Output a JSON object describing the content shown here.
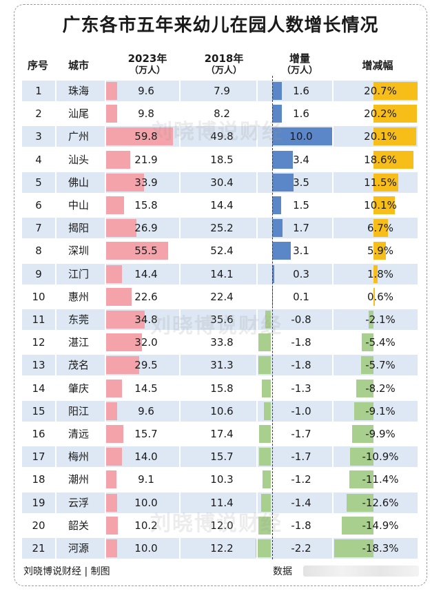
{
  "title": "广东各市五年来幼儿在园人数增长情况",
  "headers": {
    "no": "序号",
    "city": "城市",
    "y2023": "2023年",
    "y2023_unit": "（万人）",
    "y2018": "2018年",
    "y2018_unit": "（万人）",
    "inc": "增量",
    "inc_unit": "（万人）",
    "rate": "增减幅"
  },
  "watermark": "刘晓博说财经",
  "footer": {
    "left": "刘晓博说财经 | 制图",
    "right": "数据"
  },
  "colors": {
    "band": "#dde8f4",
    "bar_2023": "#f4a3ab",
    "bar_increase_pos": "#5b86c8",
    "bar_rate_pos": "#f7bd19",
    "bar_negative": "#a9cf8f"
  },
  "chart_data": {
    "type": "table",
    "title": "广东各市五年来幼儿在园人数增长情况",
    "columns": [
      "序号",
      "城市",
      "2023年（万人）",
      "2018年（万人）",
      "增量（万人）",
      "增减幅"
    ],
    "rows": [
      {
        "no": "1",
        "city": "珠海",
        "y2023": 9.6,
        "y2018": 7.9,
        "inc": 1.6,
        "rate": 20.7
      },
      {
        "no": "2",
        "city": "汕尾",
        "y2023": 9.8,
        "y2018": 8.2,
        "inc": 1.6,
        "rate": 20.2
      },
      {
        "no": "3",
        "city": "广州",
        "y2023": 59.8,
        "y2018": 49.8,
        "inc": 10.0,
        "rate": 20.1
      },
      {
        "no": "4",
        "city": "汕头",
        "y2023": 21.9,
        "y2018": 18.5,
        "inc": 3.4,
        "rate": 18.6
      },
      {
        "no": "5",
        "city": "佛山",
        "y2023": 33.9,
        "y2018": 30.4,
        "inc": 3.5,
        "rate": 11.5
      },
      {
        "no": "6",
        "city": "中山",
        "y2023": 15.8,
        "y2018": 14.4,
        "inc": 1.5,
        "rate": 10.1
      },
      {
        "no": "7",
        "city": "揭阳",
        "y2023": 26.9,
        "y2018": 25.2,
        "inc": 1.7,
        "rate": 6.7
      },
      {
        "no": "8",
        "city": "深圳",
        "y2023": 55.5,
        "y2018": 52.4,
        "inc": 3.1,
        "rate": 5.9
      },
      {
        "no": "9",
        "city": "江门",
        "y2023": 14.4,
        "y2018": 14.1,
        "inc": 0.3,
        "rate": 1.8
      },
      {
        "no": "10",
        "city": "惠州",
        "y2023": 22.6,
        "y2018": 22.4,
        "inc": 0.1,
        "rate": 0.6
      },
      {
        "no": "11",
        "city": "东莞",
        "y2023": 34.8,
        "y2018": 35.6,
        "inc": -0.8,
        "rate": -2.1
      },
      {
        "no": "12",
        "city": "湛江",
        "y2023": 32.0,
        "y2018": 33.8,
        "inc": -1.8,
        "rate": -5.4
      },
      {
        "no": "13",
        "city": "茂名",
        "y2023": 29.5,
        "y2018": 31.3,
        "inc": -1.8,
        "rate": -5.7
      },
      {
        "no": "14",
        "city": "肇庆",
        "y2023": 14.5,
        "y2018": 15.8,
        "inc": -1.3,
        "rate": -8.2
      },
      {
        "no": "15",
        "city": "阳江",
        "y2023": 9.6,
        "y2018": 10.6,
        "inc": -1.0,
        "rate": -9.1
      },
      {
        "no": "16",
        "city": "清远",
        "y2023": 15.7,
        "y2018": 17.4,
        "inc": -1.7,
        "rate": -9.9
      },
      {
        "no": "17",
        "city": "梅州",
        "y2023": 14.0,
        "y2018": 15.7,
        "inc": -1.7,
        "rate": -10.9
      },
      {
        "no": "18",
        "city": "潮州",
        "y2023": 9.1,
        "y2018": 10.3,
        "inc": -1.2,
        "rate": -11.4
      },
      {
        "no": "19",
        "city": "云浮",
        "y2023": 10.0,
        "y2018": 11.4,
        "inc": -1.4,
        "rate": -12.6
      },
      {
        "no": "20",
        "city": "韶关",
        "y2023": 10.2,
        "y2018": 12.0,
        "inc": -1.8,
        "rate": -14.9
      },
      {
        "no": "21",
        "city": "河源",
        "y2023": 10.0,
        "y2018": 12.2,
        "inc": -2.2,
        "rate": -18.3
      }
    ]
  }
}
